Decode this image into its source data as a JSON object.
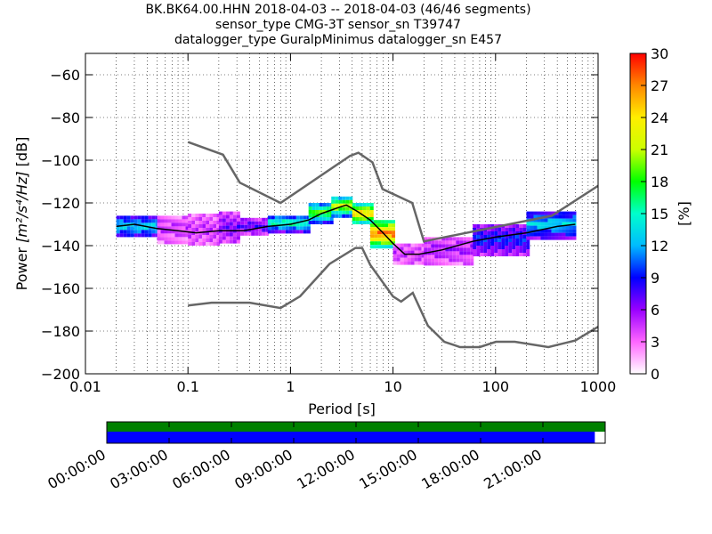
{
  "chart_data": [
    {
      "type": "heatmap",
      "title_lines": [
        "BK.BK64.00.HHN   2018-04-03 -- 2018-04-03  (46/46 segments)",
        "sensor_type CMG-3T sensor_sn T39747",
        "datalogger_type GuralpMinimus datalogger_sn E457"
      ],
      "xlabel": "Period [s]",
      "ylabel": "Power [m²/s⁴/Hz] [dB]",
      "ylabel_prefix": "Power ",
      "ylabel_math": "[m²/s⁴/Hz]",
      "ylabel_suffix": " [dB]",
      "xscale": "log",
      "xlim": [
        0.01,
        1000
      ],
      "ylim": [
        -200,
        -50
      ],
      "x_ticks": [
        0.01,
        0.1,
        1,
        10,
        100,
        1000
      ],
      "x_tick_labels": [
        "0.01",
        "0.1",
        "1",
        "10",
        "100",
        "1000"
      ],
      "y_ticks": [
        -200,
        -180,
        -160,
        -140,
        -120,
        -100,
        -80,
        -60
      ],
      "y_tick_labels": [
        "−200",
        "−180",
        "−160",
        "−140",
        "−120",
        "−100",
        "−80",
        "−60"
      ],
      "grid": true,
      "colorbar": {
        "label": "[%]",
        "range": [
          0,
          30
        ],
        "ticks": [
          0,
          3,
          6,
          9,
          12,
          15,
          18,
          21,
          24,
          27,
          30
        ],
        "tick_labels": [
          "0",
          "3",
          "6",
          "9",
          "12",
          "15",
          "18",
          "21",
          "24",
          "27",
          "30"
        ],
        "colormap": [
          "#ffffff",
          "#ff66ff",
          "#9900ff",
          "#0000ff",
          "#00bbff",
          "#00ffcc",
          "#00ff00",
          "#ccff00",
          "#ffee00",
          "#ff8800",
          "#ff0000"
        ]
      },
      "series": [
        {
          "name": "NHNM",
          "color": "#666666",
          "points": [
            [
              0.1,
              -91.5
            ],
            [
              0.22,
              -97.4
            ],
            [
              0.32,
              -110.5
            ],
            [
              0.8,
              -120
            ],
            [
              3.8,
              -98
            ],
            [
              4.6,
              -96.5
            ],
            [
              6.3,
              -101
            ],
            [
              7.9,
              -113.5
            ],
            [
              15.4,
              -120
            ],
            [
              20,
              -138
            ],
            [
              354,
              -126
            ],
            [
              1000,
              -112
            ]
          ]
        },
        {
          "name": "NLNM",
          "color": "#666666",
          "points": [
            [
              0.1,
              -168
            ],
            [
              0.17,
              -166.7
            ],
            [
              0.4,
              -166.7
            ],
            [
              0.8,
              -169.2
            ],
            [
              1.24,
              -163.7
            ],
            [
              2.4,
              -148.6
            ],
            [
              4.3,
              -141.1
            ],
            [
              5,
              -141.1
            ],
            [
              6,
              -149
            ],
            [
              10,
              -163.8
            ],
            [
              12,
              -166.2
            ],
            [
              15.6,
              -162.1
            ],
            [
              21.9,
              -177.5
            ],
            [
              31.6,
              -185
            ],
            [
              45,
              -187.5
            ],
            [
              70,
              -187.5
            ],
            [
              101,
              -185
            ],
            [
              154,
              -185
            ],
            [
              328,
              -187.5
            ],
            [
              600,
              -184.4
            ],
            [
              1000,
              -178
            ]
          ]
        },
        {
          "name": "mode",
          "color": "#000000",
          "points": [
            [
              0.02,
              -131
            ],
            [
              0.03,
              -130
            ],
            [
              0.05,
              -132
            ],
            [
              0.08,
              -133
            ],
            [
              0.12,
              -134
            ],
            [
              0.2,
              -133
            ],
            [
              0.35,
              -133
            ],
            [
              0.6,
              -131
            ],
            [
              1,
              -130
            ],
            [
              1.5,
              -128
            ],
            [
              2,
              -125
            ],
            [
              3,
              -122
            ],
            [
              3.5,
              -121
            ],
            [
              4.5,
              -124
            ],
            [
              6,
              -128
            ],
            [
              8,
              -134
            ],
            [
              10,
              -139
            ],
            [
              13,
              -144
            ],
            [
              18,
              -144
            ],
            [
              30,
              -142
            ],
            [
              60,
              -138
            ],
            [
              100,
              -136
            ],
            [
              200,
              -134
            ],
            [
              400,
              -131
            ],
            [
              600,
              -130
            ]
          ]
        }
      ],
      "density_bands": [
        {
          "x": [
            0.02,
            0.05
          ],
          "y": [
            -136,
            -126
          ],
          "level": 12
        },
        {
          "x": [
            0.05,
            0.1
          ],
          "y": [
            -138,
            -126
          ],
          "level": 3
        },
        {
          "x": [
            0.1,
            0.2
          ],
          "y": [
            -140,
            -125
          ],
          "level": 3
        },
        {
          "x": [
            0.2,
            0.3
          ],
          "y": [
            -139,
            -124
          ],
          "level": 5
        },
        {
          "x": [
            0.3,
            0.6
          ],
          "y": [
            -135,
            -127
          ],
          "level": 6
        },
        {
          "x": [
            0.6,
            1.5
          ],
          "y": [
            -133,
            -126
          ],
          "level": 15
        },
        {
          "x": [
            1.5,
            2.5
          ],
          "y": [
            -129,
            -120
          ],
          "level": 18
        },
        {
          "x": [
            2.5,
            4
          ],
          "y": [
            -126,
            -117
          ],
          "level": 21
        },
        {
          "x": [
            4,
            6
          ],
          "y": [
            -130,
            -120
          ],
          "level": 24
        },
        {
          "x": [
            6,
            10
          ],
          "y": [
            -141,
            -128
          ],
          "level": 27
        },
        {
          "x": [
            10,
            20
          ],
          "y": [
            -149,
            -139
          ],
          "level": 3
        },
        {
          "x": [
            20,
            60
          ],
          "y": [
            -148,
            -136
          ],
          "level": 4
        },
        {
          "x": [
            60,
            200
          ],
          "y": [
            -144,
            -130
          ],
          "level": 8
        },
        {
          "x": [
            200,
            600
          ],
          "y": [
            -136,
            -124
          ],
          "level": 12
        }
      ]
    },
    {
      "type": "bar",
      "orientation": "horizontal-timeline",
      "xlim_hours": [
        0,
        24
      ],
      "x_ticks_hours": [
        0,
        3,
        6,
        9,
        12,
        15,
        18,
        21
      ],
      "x_tick_labels": [
        "00:00:00",
        "03:00:00",
        "06:00:00",
        "09:00:00",
        "12:00:00",
        "15:00:00",
        "18:00:00",
        "21:00:00"
      ],
      "series": [
        {
          "name": "data",
          "color": "#008000",
          "start_hours": 0,
          "end_hours": 24
        },
        {
          "name": "psd segments",
          "color": "#0000ff",
          "start_hours": 0,
          "end_hours": 23.5
        }
      ]
    }
  ]
}
